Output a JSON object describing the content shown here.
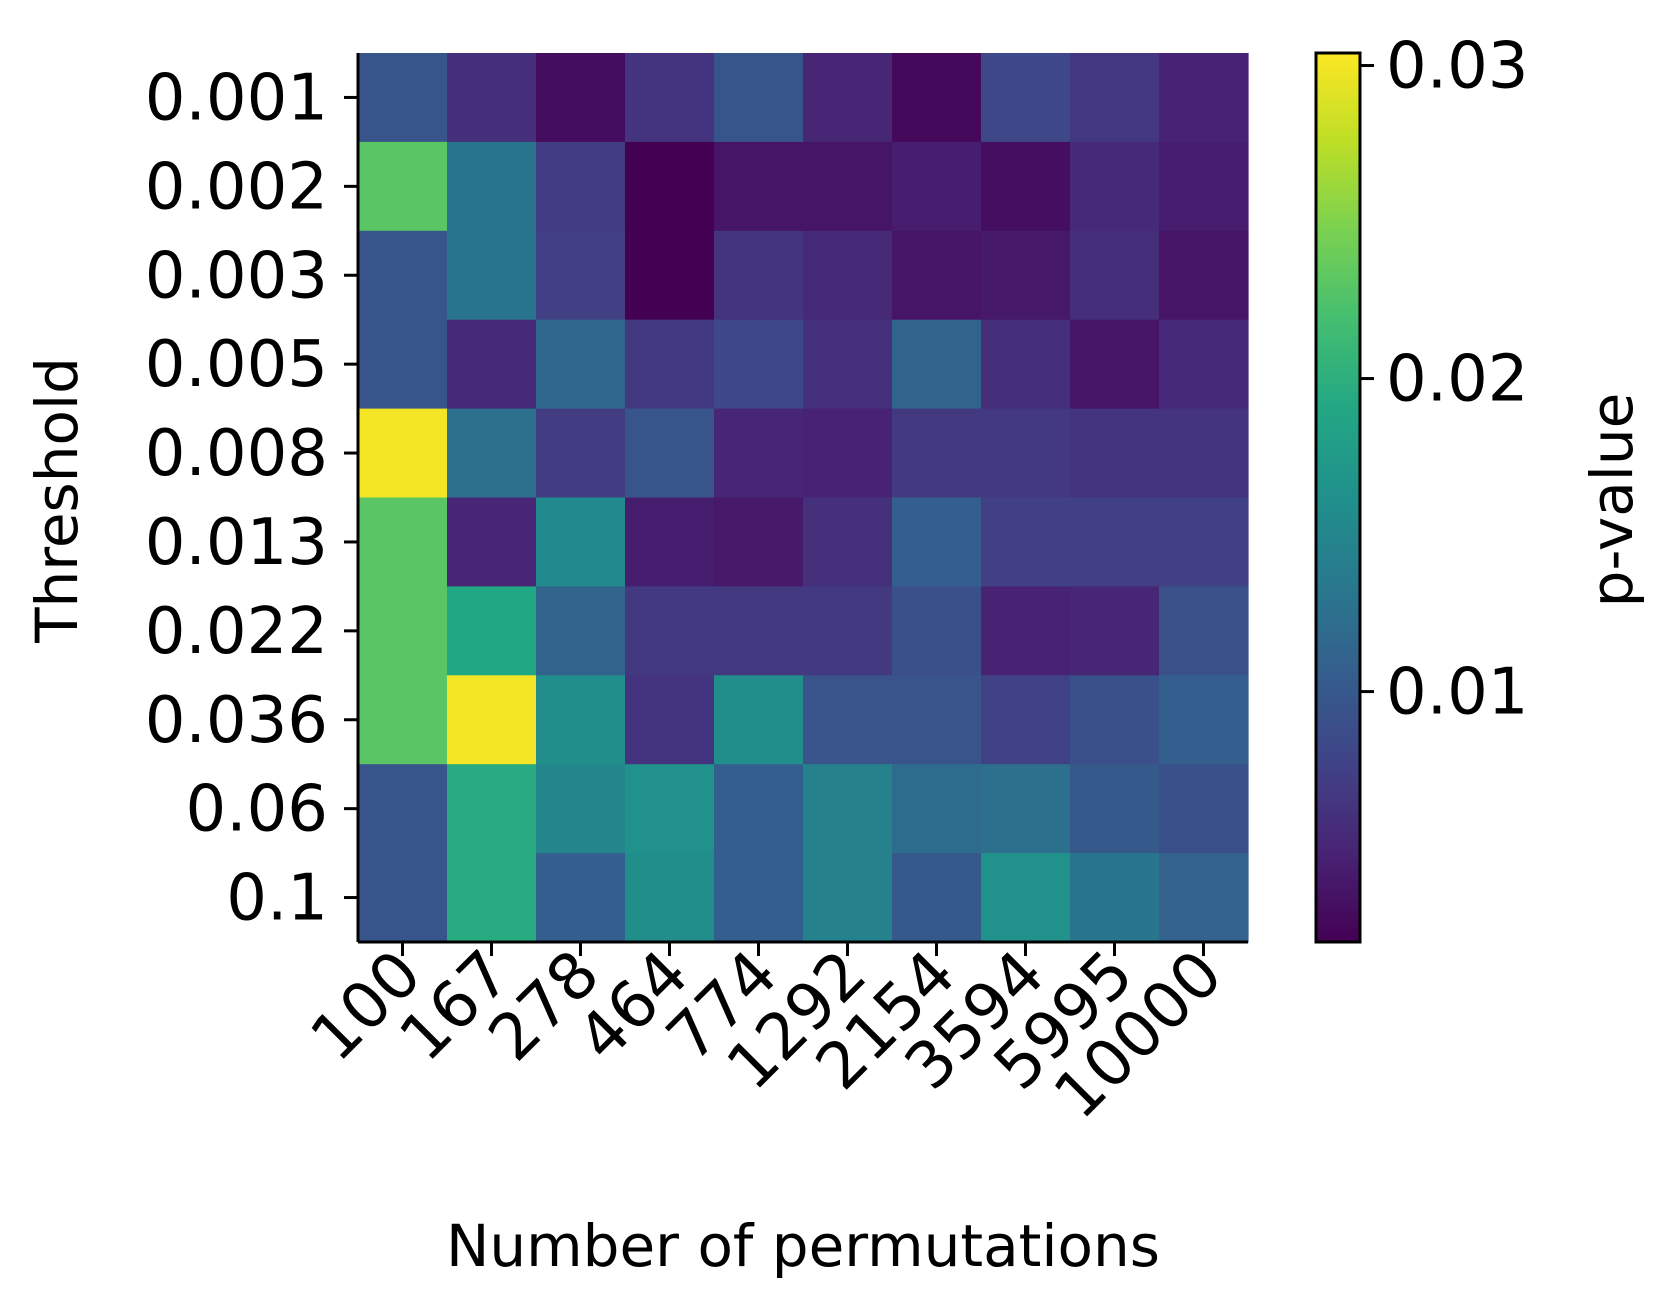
{
  "chart_data": {
    "type": "heatmap",
    "title": "",
    "xlabel": "Number of permutations",
    "ylabel": "Threshold",
    "x_categories": [
      "100",
      "167",
      "278",
      "464",
      "774",
      "1292",
      "2154",
      "3594",
      "5995",
      "10000"
    ],
    "y_categories": [
      "0.001",
      "0.002",
      "0.003",
      "0.005",
      "0.008",
      "0.013",
      "0.022",
      "0.036",
      "0.06",
      "0.1"
    ],
    "values": [
      [
        0.0096,
        0.0058,
        0.003,
        0.0063,
        0.0096,
        0.0051,
        0.0027,
        0.0082,
        0.0067,
        0.0048
      ],
      [
        0.023,
        0.013,
        0.0071,
        0.002,
        0.0037,
        0.0037,
        0.0044,
        0.0031,
        0.0054,
        0.0044
      ],
      [
        0.0096,
        0.013,
        0.0074,
        0.002,
        0.0063,
        0.0055,
        0.0037,
        0.004,
        0.0058,
        0.0037
      ],
      [
        0.0096,
        0.0055,
        0.0115,
        0.0068,
        0.0081,
        0.006,
        0.0112,
        0.0058,
        0.0037,
        0.0054
      ],
      [
        0.03,
        0.0125,
        0.0071,
        0.0096,
        0.0051,
        0.0048,
        0.0068,
        0.0068,
        0.0063,
        0.0063
      ],
      [
        0.023,
        0.005,
        0.0155,
        0.0044,
        0.004,
        0.006,
        0.0105,
        0.0074,
        0.0074,
        0.0074
      ],
      [
        0.023,
        0.019,
        0.0112,
        0.0068,
        0.0068,
        0.0068,
        0.009,
        0.0048,
        0.0051,
        0.0092
      ],
      [
        0.023,
        0.03,
        0.016,
        0.0063,
        0.016,
        0.0095,
        0.0095,
        0.0075,
        0.009,
        0.0105
      ],
      [
        0.0096,
        0.0195,
        0.015,
        0.0165,
        0.0105,
        0.0145,
        0.012,
        0.0125,
        0.01,
        0.009
      ],
      [
        0.0096,
        0.0195,
        0.0105,
        0.016,
        0.0105,
        0.0145,
        0.01,
        0.0165,
        0.013,
        0.011
      ]
    ],
    "colorbar": {
      "label": "p-value",
      "colormap": "viridis",
      "vmin": 0.002,
      "vmax": 0.0304,
      "ticks": [
        0.01,
        0.02,
        0.03
      ],
      "tick_labels": [
        "0.01",
        "0.02",
        "0.03"
      ]
    },
    "grid": false,
    "legend": "colorbar at right"
  }
}
